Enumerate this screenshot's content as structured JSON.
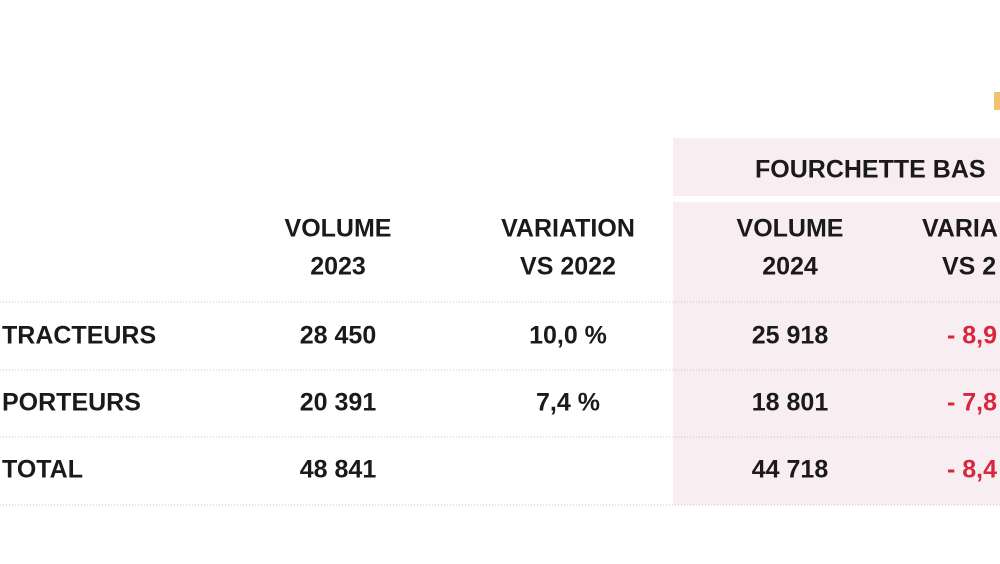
{
  "table": {
    "group_header": "FOURCHETTE BAS",
    "columns": [
      {
        "line1": "VOLUME",
        "line2": "2023"
      },
      {
        "line1": "VARIATION",
        "line2": "VS 2022"
      },
      {
        "line1": "VOLUME",
        "line2": "2024"
      },
      {
        "line1": "VARIA",
        "line2": "VS 2"
      }
    ],
    "rows": [
      {
        "label": "TRACTEURS",
        "color": "#f0c46e",
        "cells": [
          "28 450",
          "10,0 %",
          "25 918",
          "- 8,9"
        ]
      },
      {
        "label": "PORTEURS",
        "color": "#1b8c7c",
        "cells": [
          "20 391",
          "7,4 %",
          "18 801",
          "- 7,8"
        ]
      },
      {
        "label": "TOTAL",
        "color": "#a2417f",
        "cells": [
          "48 841",
          null,
          "44 718",
          "- 8,4"
        ]
      }
    ]
  }
}
